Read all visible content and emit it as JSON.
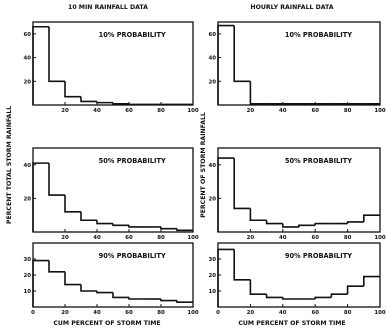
{
  "column_titles": [
    "10 MIN RAINFALL DATA",
    "HOURLY RAINFALL DATA"
  ],
  "xlabel": "CUM PERCENT OF STORM TIME",
  "ylabel_left": "PERCENT TOTAL STORM RAINFALL",
  "ylabel_right": "PERCENT OF STORM RAINFALL",
  "chart_data": [
    {
      "type": "bar",
      "title": "10% PROBABILITY",
      "column": "10 MIN RAINFALL DATA",
      "bin_edges": [
        0,
        10,
        20,
        30,
        40,
        50,
        60,
        70,
        80,
        90,
        100
      ],
      "values": [
        66,
        20,
        7,
        3,
        2,
        1,
        0.5,
        0.5,
        0.5,
        0.5
      ],
      "xlim": [
        0,
        100
      ],
      "ylim": [
        0,
        70
      ],
      "xticks": [
        "20",
        "40",
        "60",
        "80",
        "100"
      ],
      "yticks": [
        "20",
        "40",
        "60"
      ]
    },
    {
      "type": "bar",
      "title": "10% PROBABILITY",
      "column": "HOURLY RAINFALL DATA",
      "bin_edges": [
        0,
        10,
        20,
        30,
        40,
        50,
        60,
        70,
        80,
        90,
        100
      ],
      "values": [
        67,
        20,
        1,
        1,
        1,
        1,
        1,
        1,
        1,
        1
      ],
      "xlim": [
        0,
        100
      ],
      "ylim": [
        0,
        70
      ],
      "xticks": [
        "20",
        "40",
        "60",
        "80",
        "100"
      ],
      "yticks": [
        "20",
        "40",
        "60"
      ]
    },
    {
      "type": "bar",
      "title": "50% PROBABILITY",
      "column": "10 MIN RAINFALL DATA",
      "bin_edges": [
        0,
        10,
        20,
        30,
        40,
        50,
        60,
        70,
        80,
        90,
        100
      ],
      "values": [
        41,
        22,
        12,
        7,
        5,
        4,
        3,
        3,
        2,
        1
      ],
      "xlim": [
        0,
        100
      ],
      "ylim": [
        0,
        50
      ],
      "xticks": [
        "20",
        "40",
        "60",
        "80",
        "100"
      ],
      "yticks": [
        "20",
        "40"
      ]
    },
    {
      "type": "bar",
      "title": "50% PROBABILITY",
      "column": "HOURLY RAINFALL DATA",
      "bin_edges": [
        0,
        10,
        20,
        30,
        40,
        50,
        60,
        70,
        80,
        90,
        100
      ],
      "values": [
        44,
        14,
        7,
        5,
        3,
        4,
        5,
        5,
        6,
        10
      ],
      "xlim": [
        0,
        100
      ],
      "ylim": [
        0,
        50
      ],
      "xticks": [
        "20",
        "40",
        "60",
        "80",
        "100"
      ],
      "yticks": [
        "20",
        "40"
      ]
    },
    {
      "type": "bar",
      "title": "90% PROBABILITY",
      "column": "10 MIN RAINFALL DATA",
      "bin_edges": [
        0,
        10,
        20,
        30,
        40,
        50,
        60,
        70,
        80,
        90,
        100
      ],
      "values": [
        29,
        22,
        14,
        10,
        9,
        6,
        5,
        5,
        4,
        3
      ],
      "xlim": [
        0,
        100
      ],
      "ylim": [
        0,
        40
      ],
      "xticks": [
        "0",
        "20",
        "40",
        "60",
        "80",
        "100"
      ],
      "yticks": [
        "10",
        "20",
        "30"
      ]
    },
    {
      "type": "bar",
      "title": "90% PROBABILITY",
      "column": "HOURLY RAINFALL DATA",
      "bin_edges": [
        0,
        10,
        20,
        30,
        40,
        50,
        60,
        70,
        80,
        90,
        100
      ],
      "values": [
        36,
        17,
        8,
        6,
        5,
        5,
        6,
        8,
        13,
        19
      ],
      "xlim": [
        0,
        100
      ],
      "ylim": [
        0,
        40
      ],
      "xticks": [
        "0",
        "20",
        "40",
        "60",
        "80",
        "100"
      ],
      "yticks": [
        "10",
        "20",
        "30"
      ]
    }
  ]
}
